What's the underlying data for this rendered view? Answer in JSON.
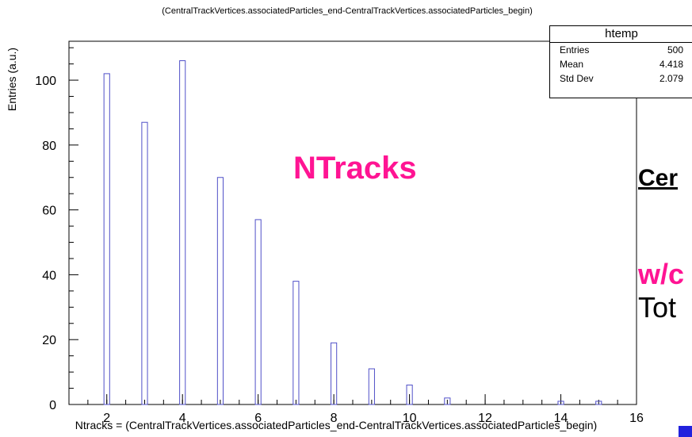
{
  "chart_data": {
    "type": "bar",
    "title": "(CentralTrackVertices.associatedParticles_end-CentralTrackVertices.associatedParticles_begin)",
    "xlabel": "Ntracks = (CentralTrackVertices.associatedParticles_end-CentralTrackVertices.associatedParticles_begin)",
    "ylabel": "Entries (a.u.)",
    "xlim": [
      1,
      16
    ],
    "ylim": [
      0,
      112
    ],
    "x_ticks": [
      "2",
      "4",
      "6",
      "8",
      "10",
      "12",
      "14",
      "16"
    ],
    "y_ticks": [
      "0",
      "20",
      "40",
      "60",
      "80",
      "100"
    ],
    "x": [
      2,
      3,
      4,
      5,
      6,
      7,
      8,
      9,
      10,
      11,
      14,
      15
    ],
    "values": [
      102,
      87,
      106,
      70,
      57,
      38,
      19,
      11,
      6,
      2,
      1,
      1
    ],
    "bar_color": "#5050c8"
  },
  "stats": {
    "title": "htemp",
    "rows": [
      {
        "label": "Entries",
        "value": "500"
      },
      {
        "label": "Mean",
        "value": "4.418"
      },
      {
        "label": "Std Dev",
        "value": "2.079"
      }
    ]
  },
  "annotations": {
    "ntracks": "NTracks",
    "side_1": "Cer",
    "side_2": "w/c",
    "side_3": "Tot"
  },
  "colors": {
    "accent": "#ff1493",
    "bars": "#5050c8"
  }
}
